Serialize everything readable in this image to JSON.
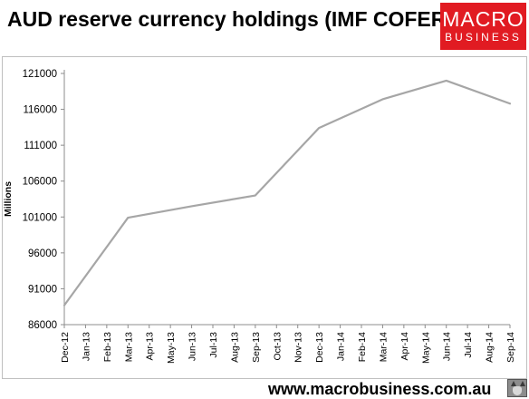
{
  "header": {
    "title": "AUD reserve currency holdings (IMF COFER)"
  },
  "logo": {
    "line1": "MACRO",
    "line2": "BUSINESS",
    "color": "#e11b22"
  },
  "footer": {
    "url": "www.macrobusiness.com.au"
  },
  "chart_data": {
    "type": "line",
    "title": "",
    "xlabel": "",
    "ylabel": "Millions",
    "categories": [
      "Dec-12",
      "Jan-13",
      "Feb-13",
      "Mar-13",
      "Apr-13",
      "May-13",
      "Jun-13",
      "Jul-13",
      "Aug-13",
      "Sep-13",
      "Oct-13",
      "Nov-13",
      "Dec-13",
      "Jan-14",
      "Feb-14",
      "Mar-14",
      "Apr-14",
      "May-14",
      "Jun-14",
      "Jul-14",
      "Aug-14",
      "Sep-14"
    ],
    "series": [
      {
        "values": [
          88700,
          null,
          null,
          100900,
          null,
          null,
          102500,
          null,
          null,
          104000,
          null,
          null,
          113400,
          null,
          null,
          117400,
          null,
          null,
          120000,
          null,
          null,
          116800
        ],
        "color": "#a6a6a6"
      }
    ],
    "ylim": [
      86000,
      121000
    ],
    "yticks": [
      86000,
      91000,
      96000,
      101000,
      106000,
      111000,
      116000,
      121000
    ],
    "grid": false,
    "legend": "none"
  }
}
